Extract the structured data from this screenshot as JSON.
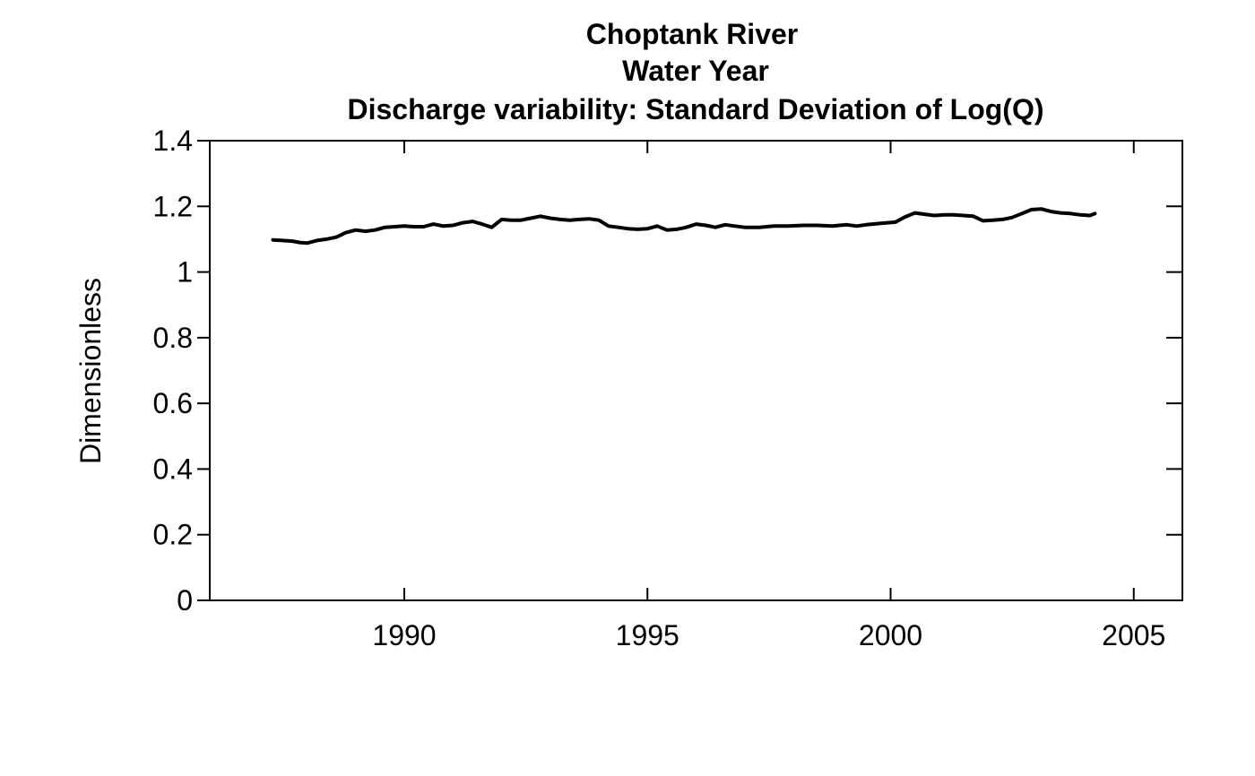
{
  "chart_data": {
    "type": "line",
    "title": [
      "Choptank River",
      "Water Year",
      "Discharge variability: Standard Deviation of Log(Q)"
    ],
    "xlabel": "",
    "ylabel": "Dimensionless",
    "xlim": [
      1986,
      2006
    ],
    "ylim": [
      0,
      1.4
    ],
    "xticks": [
      "1990",
      "1995",
      "2000",
      "2005"
    ],
    "yticks": [
      "0",
      "0.2",
      "0.4",
      "0.6",
      "0.8",
      "1",
      "1.2",
      "1.4"
    ],
    "grid": false,
    "series": [
      {
        "color": "#000000",
        "x": [
          1987.3,
          1987.5,
          1987.7,
          1987.85,
          1988.0,
          1988.2,
          1988.4,
          1988.6,
          1988.8,
          1989.0,
          1989.2,
          1989.4,
          1989.6,
          1989.8,
          1990.0,
          1990.2,
          1990.4,
          1990.6,
          1990.8,
          1991.0,
          1991.2,
          1991.4,
          1991.6,
          1991.8,
          1992.0,
          1992.2,
          1992.4,
          1992.6,
          1992.8,
          1993.0,
          1993.2,
          1993.4,
          1993.6,
          1993.8,
          1994.0,
          1994.2,
          1994.4,
          1994.6,
          1994.8,
          1995.0,
          1995.2,
          1995.4,
          1995.6,
          1995.8,
          1996.0,
          1996.2,
          1996.4,
          1996.6,
          1996.8,
          1997.0,
          1997.3,
          1997.6,
          1997.9,
          1998.2,
          1998.5,
          1998.8,
          1999.1,
          1999.3,
          1999.5,
          1999.8,
          2000.1,
          2000.3,
          2000.5,
          2000.7,
          2000.9,
          2001.1,
          2001.3,
          2001.5,
          2001.7,
          2001.9,
          2002.1,
          2002.3,
          2002.5,
          2002.7,
          2002.9,
          2003.1,
          2003.3,
          2003.5,
          2003.7,
          2003.9,
          2004.1,
          2004.2
        ],
        "y": [
          1.098,
          1.096,
          1.094,
          1.09,
          1.088,
          1.096,
          1.1,
          1.106,
          1.12,
          1.128,
          1.124,
          1.128,
          1.136,
          1.138,
          1.14,
          1.138,
          1.138,
          1.146,
          1.14,
          1.142,
          1.15,
          1.154,
          1.146,
          1.136,
          1.16,
          1.158,
          1.158,
          1.164,
          1.17,
          1.164,
          1.16,
          1.158,
          1.16,
          1.162,
          1.158,
          1.14,
          1.136,
          1.132,
          1.13,
          1.132,
          1.14,
          1.128,
          1.13,
          1.136,
          1.146,
          1.142,
          1.136,
          1.144,
          1.14,
          1.136,
          1.136,
          1.14,
          1.14,
          1.142,
          1.142,
          1.14,
          1.144,
          1.14,
          1.144,
          1.148,
          1.152,
          1.168,
          1.18,
          1.176,
          1.172,
          1.174,
          1.174,
          1.172,
          1.17,
          1.156,
          1.158,
          1.16,
          1.166,
          1.178,
          1.19,
          1.192,
          1.184,
          1.18,
          1.178,
          1.174,
          1.172,
          1.178
        ]
      }
    ]
  }
}
